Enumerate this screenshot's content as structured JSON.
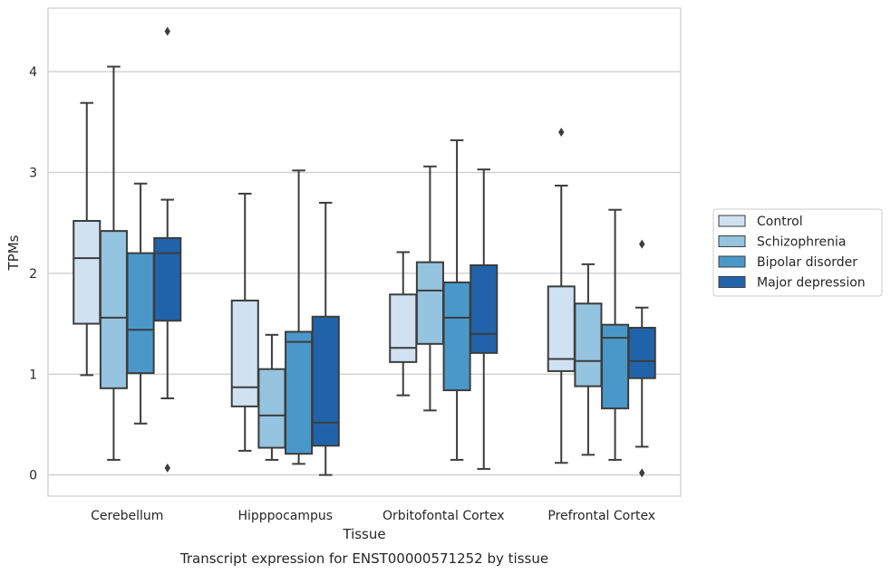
{
  "chart_data": {
    "type": "box",
    "caption": "Transcript expression for ENST00000571252 by tissue",
    "xlabel": "Tissue",
    "ylabel": "TPMs",
    "ylim": [
      -0.21,
      4.63
    ],
    "yticks": [
      0,
      1,
      2,
      3,
      4
    ],
    "grid": "horizontal",
    "legend_position": "right",
    "categories": [
      "Cerebellum",
      "Hipppocampus",
      "Orbitofontal Cortex",
      "Prefrontal Cortex"
    ],
    "series": [
      {
        "name": "Control",
        "color": "#d0e1f2",
        "boxes": [
          {
            "whisker_low": 0.99,
            "q1": 1.5,
            "median": 2.15,
            "q3": 2.52,
            "whisker_high": 3.69,
            "outliers": []
          },
          {
            "whisker_low": 0.24,
            "q1": 0.68,
            "median": 0.87,
            "q3": 1.73,
            "whisker_high": 2.79,
            "outliers": []
          },
          {
            "whisker_low": 0.79,
            "q1": 1.12,
            "median": 1.26,
            "q3": 1.79,
            "whisker_high": 2.21,
            "outliers": []
          },
          {
            "whisker_low": 0.12,
            "q1": 1.03,
            "median": 1.15,
            "q3": 1.87,
            "whisker_high": 2.87,
            "outliers": [
              3.4
            ]
          }
        ]
      },
      {
        "name": "Schizophrenia",
        "color": "#94c4df",
        "boxes": [
          {
            "whisker_low": 0.15,
            "q1": 0.86,
            "median": 1.56,
            "q3": 2.42,
            "whisker_high": 4.05,
            "outliers": []
          },
          {
            "whisker_low": 0.15,
            "q1": 0.27,
            "median": 0.59,
            "q3": 1.05,
            "whisker_high": 1.39,
            "outliers": []
          },
          {
            "whisker_low": 0.64,
            "q1": 1.3,
            "median": 1.83,
            "q3": 2.11,
            "whisker_high": 3.06,
            "outliers": []
          },
          {
            "whisker_low": 0.2,
            "q1": 0.88,
            "median": 1.13,
            "q3": 1.7,
            "whisker_high": 2.09,
            "outliers": []
          }
        ]
      },
      {
        "name": "Bipolar disorder",
        "color": "#4a98c9",
        "boxes": [
          {
            "whisker_low": 0.51,
            "q1": 1.01,
            "median": 1.44,
            "q3": 2.2,
            "whisker_high": 2.89,
            "outliers": []
          },
          {
            "whisker_low": 0.11,
            "q1": 0.21,
            "median": 1.32,
            "q3": 1.42,
            "whisker_high": 3.02,
            "outliers": []
          },
          {
            "whisker_low": 0.15,
            "q1": 0.84,
            "median": 1.56,
            "q3": 1.91,
            "whisker_high": 3.32,
            "outliers": []
          },
          {
            "whisker_low": 0.15,
            "q1": 0.66,
            "median": 1.36,
            "q3": 1.49,
            "whisker_high": 2.63,
            "outliers": []
          }
        ]
      },
      {
        "name": "Major depression",
        "color": "#2163aa",
        "boxes": [
          {
            "whisker_low": 0.76,
            "q1": 1.53,
            "median": 2.2,
            "q3": 2.35,
            "whisker_high": 2.73,
            "outliers": [
              4.4,
              0.07
            ]
          },
          {
            "whisker_low": 0.0,
            "q1": 0.29,
            "median": 0.52,
            "q3": 1.57,
            "whisker_high": 2.7,
            "outliers": []
          },
          {
            "whisker_low": 0.06,
            "q1": 1.21,
            "median": 1.4,
            "q3": 2.08,
            "whisker_high": 3.03,
            "outliers": []
          },
          {
            "whisker_low": 0.28,
            "q1": 0.96,
            "median": 1.13,
            "q3": 1.46,
            "whisker_high": 1.66,
            "outliers": [
              2.29,
              0.02
            ]
          }
        ]
      }
    ]
  }
}
